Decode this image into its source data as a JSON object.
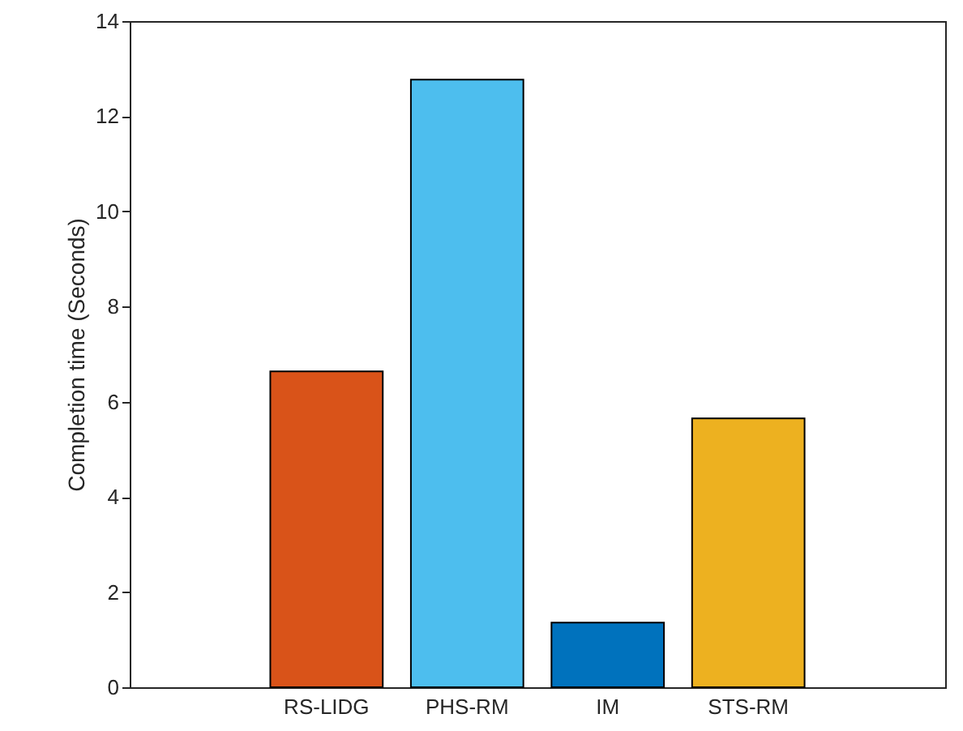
{
  "chart_data": {
    "type": "bar",
    "ylabel": "Completion time (Seconds)",
    "categories": [
      "RS-LIDG",
      "PHS-RM",
      "IM",
      "STS-RM"
    ],
    "values": [
      6.64,
      12.77,
      1.36,
      5.65
    ],
    "colors": [
      "#d95319",
      "#4dbeee",
      "#0072bd",
      "#edb120"
    ],
    "ylim": [
      0,
      14
    ],
    "yticks": [
      0,
      2,
      4,
      6,
      8,
      10,
      12,
      14
    ],
    "grid": false
  }
}
